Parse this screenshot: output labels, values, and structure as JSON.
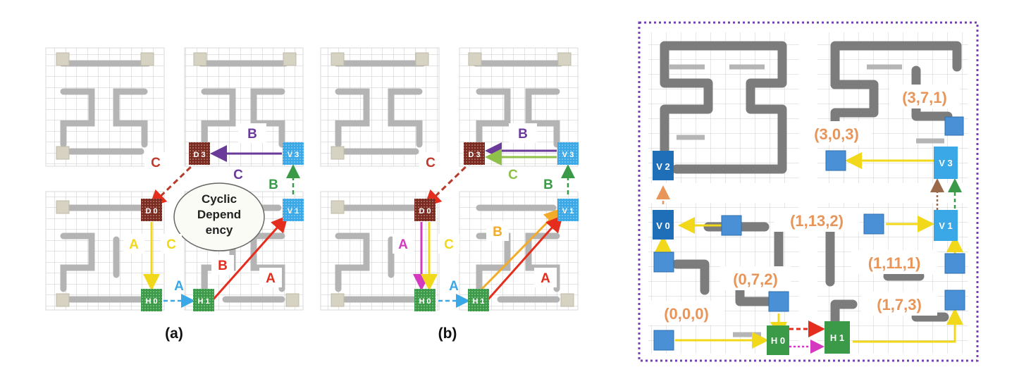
{
  "panel_a": {
    "label": "(a)",
    "routers": {
      "D3": "D 3",
      "V3": "V 3",
      "D0": "D 0",
      "V1": "V 1",
      "H0": "H 0",
      "H1": "H 1"
    },
    "path_labels": {
      "B_top": "B",
      "C_left": "C",
      "C_mid": "C",
      "B_right": "B",
      "A_left": "A",
      "C_left2": "C",
      "B_mid": "B",
      "A_right": "A",
      "A_bottom": "A"
    },
    "bubble": [
      "Cyclic",
      "Depend",
      "ency"
    ]
  },
  "panel_b": {
    "label": "(b)",
    "routers": {
      "D3": "D 3",
      "V3": "V 3",
      "D0": "D 0",
      "V1": "V 1",
      "H0": "H 0",
      "H1": "H 1"
    },
    "path_labels": {
      "B_top": "B",
      "C_left": "C",
      "C_mid": "C",
      "B_right": "B",
      "A_left": "A",
      "C_left2": "C",
      "B_mid": "B",
      "A_right": "A",
      "A_bottom": "A"
    }
  },
  "panel_c": {
    "routers": {
      "V2": "V 2",
      "V3": "V 3",
      "V0": "V 0",
      "V1": "V 1",
      "H0": "H 0",
      "H1": "H 1"
    },
    "coords": {
      "c371": "(3,7,1)",
      "c303": "(3,0,3)",
      "c1132": "(1,13,2)",
      "c1111": "(1,11,1)",
      "c072": "(0,7,2)",
      "c173": "(1,7,3)",
      "c000": "(0,0,0)"
    }
  },
  "colors": {
    "D": "#7a2a1e",
    "V": "#3aa8e6",
    "V_dark": "#1e6fb8",
    "H": "#3a9a48",
    "orange": "#e8955a",
    "purple": "#6a3a9a",
    "red": "#e52d1e",
    "yellow": "#f2d81a",
    "magenta": "#d43ac0",
    "lime": "#8fc04a",
    "amber": "#f2ac2a",
    "green": "#3a9a48",
    "frame": "#7b3fb5"
  }
}
